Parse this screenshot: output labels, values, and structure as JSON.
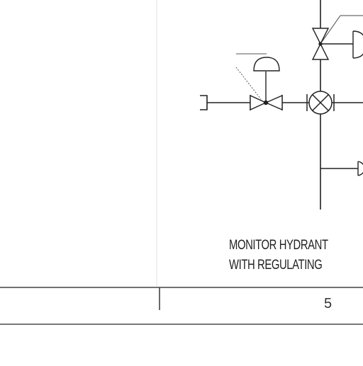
{
  "diagram": {
    "caption": {
      "line1": "MONITOR HYDRANT",
      "line2": "WITH REGULATING"
    },
    "title_block": {
      "sheet_number": "5"
    },
    "colors": {
      "line": "#222222",
      "frame": "#444444",
      "leader": "#555555"
    }
  }
}
